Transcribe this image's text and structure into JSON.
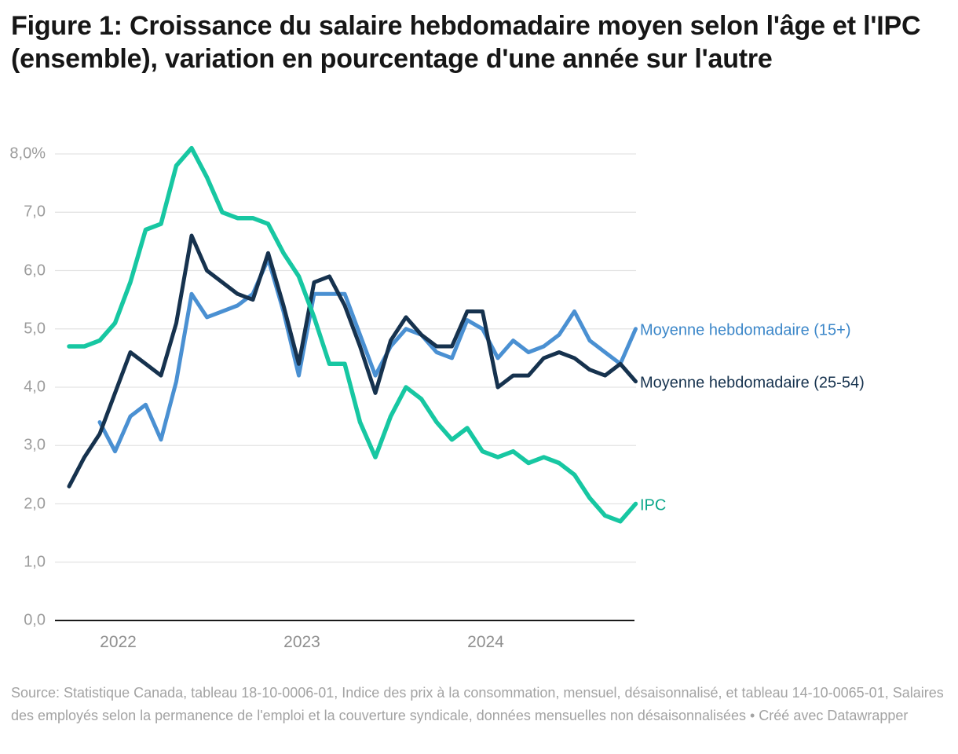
{
  "title": {
    "text": "Figure 1: Croissance du salaire hebdomadaire moyen selon l'âge et l'IPC (ensemble), variation en pourcentage d'une année sur l'autre"
  },
  "footer": {
    "source": "Source: Statistique Canada, tableau 18-10-0006-01, Indice des prix à la consommation, mensuel, désaisonnalisé, et tableau 14-10-0065-01, Salaires des employés selon la permanence de l'emploi et la couverture syndicale, données mensuelles non désaisonnalisées",
    "credit": " • Créé avec Datawrapper"
  },
  "chart_data": {
    "type": "line",
    "title": "Croissance du salaire hebdomadaire moyen selon l'âge et l'IPC (ensemble), variation en pourcentage d'une année sur l'autre",
    "ylim": [
      0,
      8
    ],
    "grid": true,
    "legend_position": "right-of-line-ends",
    "y_ticks": [
      "8,0%",
      "7,0",
      "6,0",
      "5,0",
      "4,0",
      "3,0",
      "2,0",
      "1,0",
      "0,0"
    ],
    "y_tick_values": [
      8,
      7,
      6,
      5,
      4,
      3,
      2,
      1,
      0
    ],
    "x_tick_labels": [
      "2022",
      "2023",
      "2024"
    ],
    "x_tick_month_indices": [
      3,
      15,
      27
    ],
    "months": [
      "2021-10",
      "2021-11",
      "2021-12",
      "2022-01",
      "2022-02",
      "2022-03",
      "2022-04",
      "2022-05",
      "2022-06",
      "2022-07",
      "2022-08",
      "2022-09",
      "2022-10",
      "2022-11",
      "2022-12",
      "2023-01",
      "2023-02",
      "2023-03",
      "2023-04",
      "2023-05",
      "2023-06",
      "2023-07",
      "2023-08",
      "2023-09",
      "2023-10",
      "2023-11",
      "2023-12",
      "2024-01",
      "2024-02",
      "2024-03",
      "2024-04",
      "2024-05",
      "2024-06",
      "2024-07",
      "2024-08",
      "2024-09",
      "2024-10",
      "2024-11"
    ],
    "series": [
      {
        "name": "Moyenne hebdomadaire (15+)",
        "color": "#4a90d2",
        "label_color": "#3c87c9",
        "values": [
          null,
          null,
          3.4,
          2.9,
          3.5,
          3.7,
          3.1,
          4.1,
          5.6,
          5.2,
          5.3,
          5.4,
          5.6,
          6.2,
          5.3,
          4.2,
          5.6,
          5.6,
          5.6,
          4.9,
          4.2,
          4.7,
          5.0,
          4.9,
          4.6,
          4.5,
          5.15,
          5.0,
          4.5,
          4.8,
          4.6,
          4.7,
          4.9,
          5.3,
          4.8,
          4.6,
          4.4,
          5.0
        ]
      },
      {
        "name": "Moyenne hebdomadaire (25-54)",
        "color": "#16324e",
        "label_color": "#16324e",
        "values": [
          2.3,
          2.8,
          3.2,
          3.9,
          4.6,
          4.4,
          4.2,
          5.1,
          6.6,
          6.0,
          5.8,
          5.6,
          5.5,
          6.3,
          5.4,
          4.4,
          5.8,
          5.9,
          5.4,
          4.7,
          3.9,
          4.8,
          5.2,
          4.9,
          4.7,
          4.7,
          5.3,
          5.3,
          4.0,
          4.2,
          4.2,
          4.5,
          4.6,
          4.5,
          4.3,
          4.2,
          4.4,
          4.1
        ]
      },
      {
        "name": "IPC",
        "color": "#17c7a2",
        "label_color": "#0ba78a",
        "values": [
          4.7,
          4.7,
          4.8,
          5.1,
          5.8,
          6.7,
          6.8,
          7.8,
          8.1,
          7.6,
          7.0,
          6.9,
          6.9,
          6.8,
          6.3,
          5.9,
          5.2,
          4.4,
          4.4,
          3.4,
          2.8,
          3.5,
          4.0,
          3.8,
          3.4,
          3.1,
          3.3,
          2.9,
          2.8,
          2.9,
          2.7,
          2.8,
          2.7,
          2.5,
          2.1,
          1.8,
          1.7,
          2.0
        ]
      }
    ],
    "colors": {
      "grid": "#e3e3e3",
      "axis": "#1a1a1a",
      "tick_text": "#9c9c9c"
    }
  }
}
